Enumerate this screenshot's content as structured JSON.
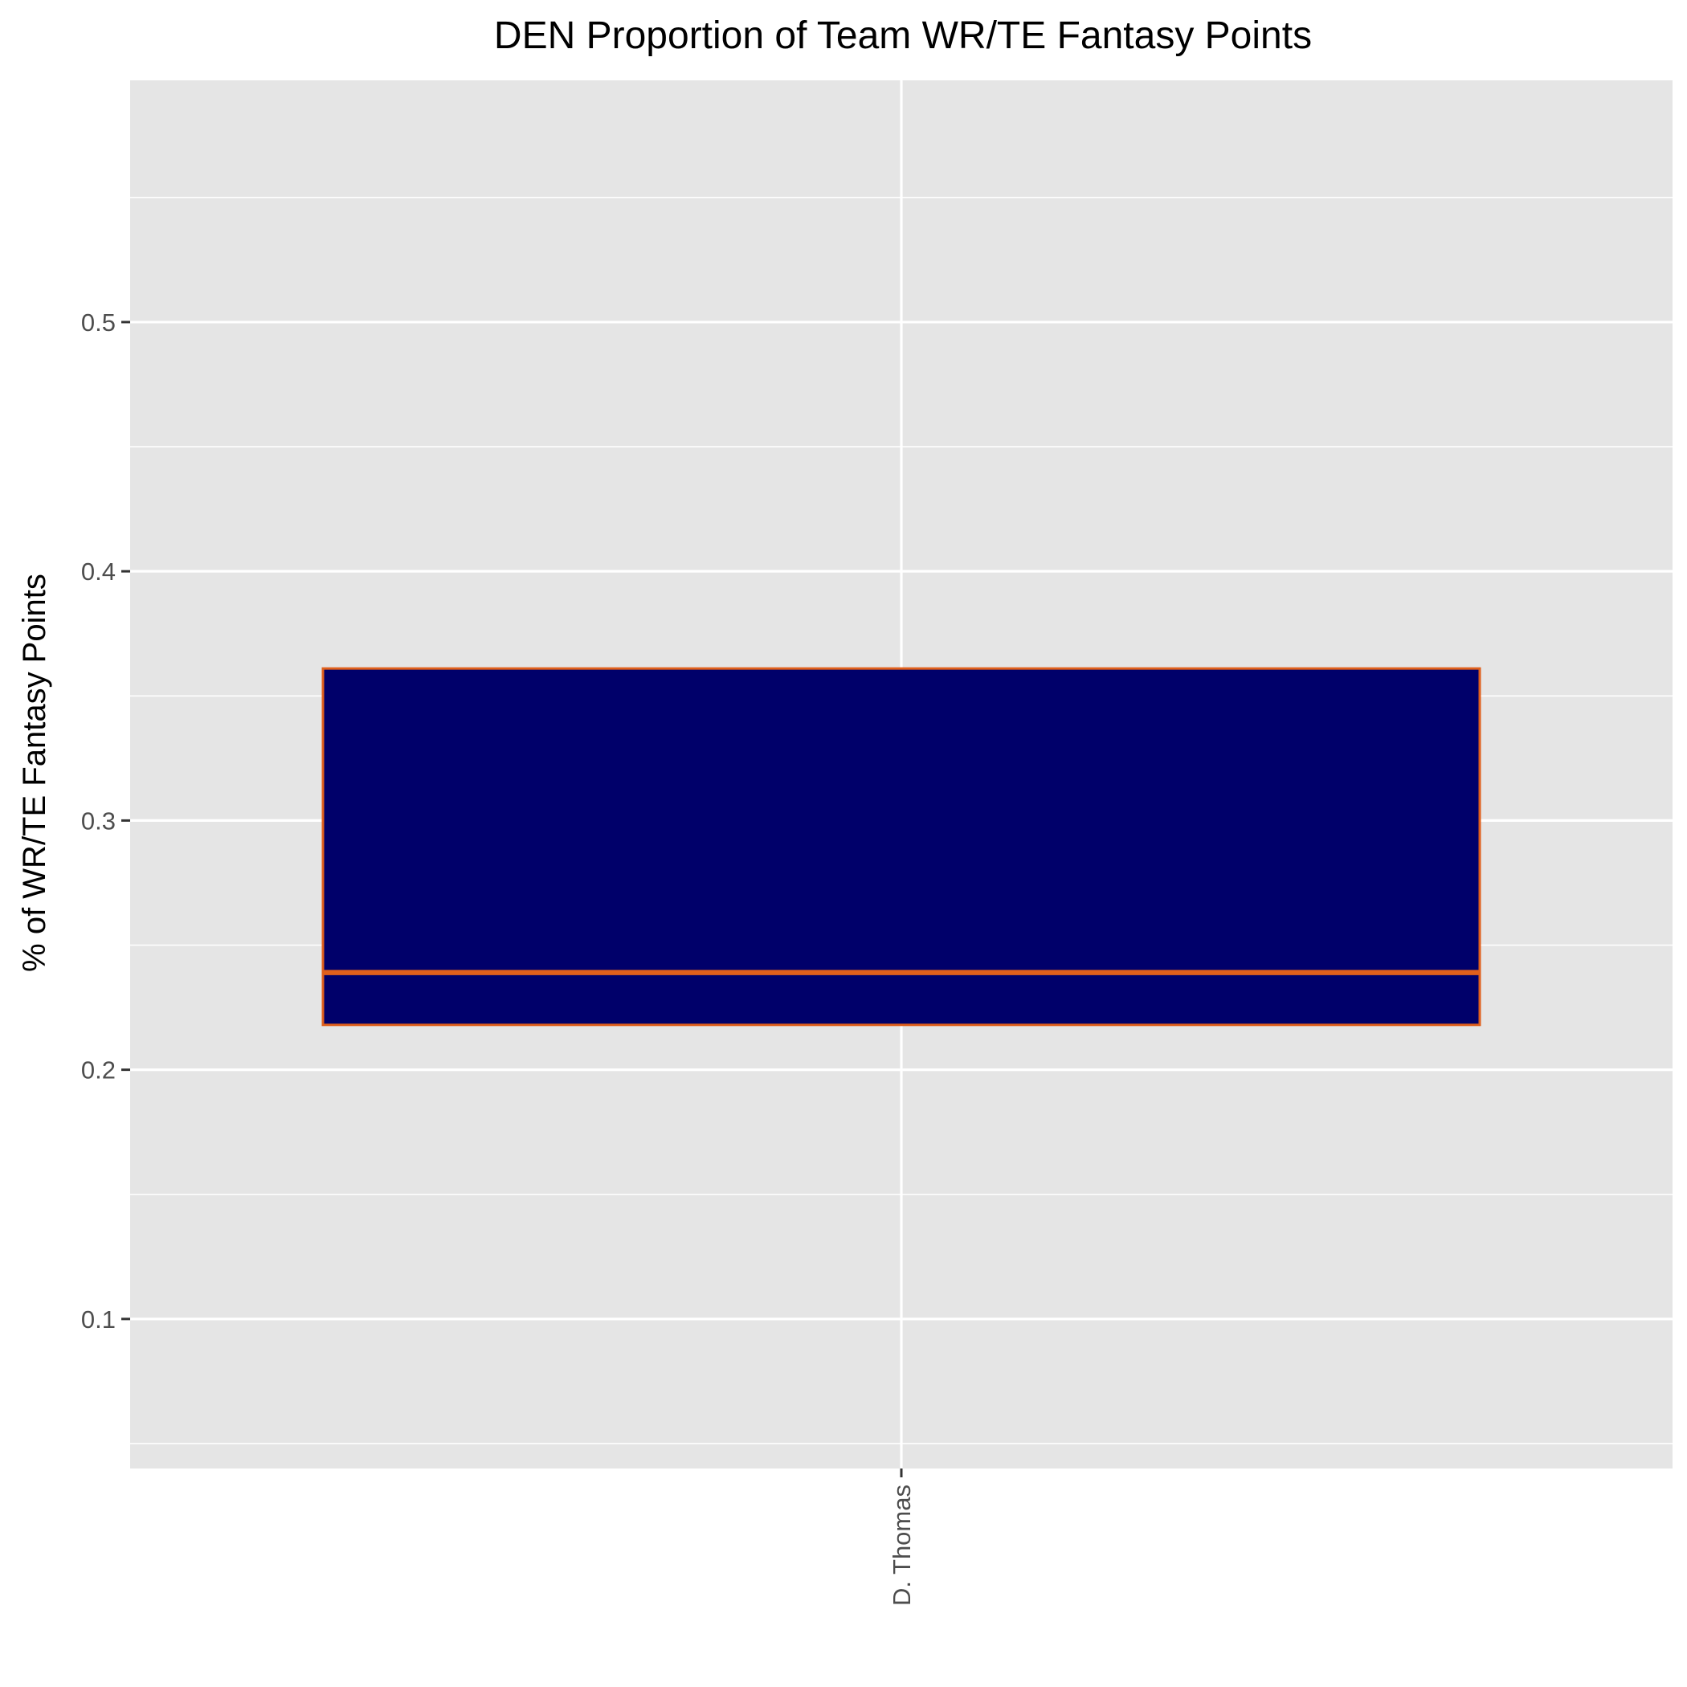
{
  "chart_data": {
    "type": "box",
    "title": "DEN Proportion of Team WR/TE Fantasy Points",
    "xlabel": "",
    "ylabel": "% of WR/TE Fantasy Points",
    "categories": [
      "D. Thomas"
    ],
    "boxes": [
      {
        "category": "D. Thomas",
        "q1": 0.218,
        "median": 0.239,
        "q3": 0.361
      }
    ],
    "ylim": [
      0.04,
      0.597
    ],
    "y_ticks": [
      0.1,
      0.2,
      0.3,
      0.4,
      0.5
    ],
    "y_tick_labels": [
      "0.1",
      "0.2",
      "0.3",
      "0.4",
      "0.5"
    ],
    "grid": true,
    "colors": {
      "panel_background": "#e5e5e5",
      "grid": "#ffffff",
      "box_fill": "#00006a",
      "box_outline": "#e0601c"
    }
  }
}
